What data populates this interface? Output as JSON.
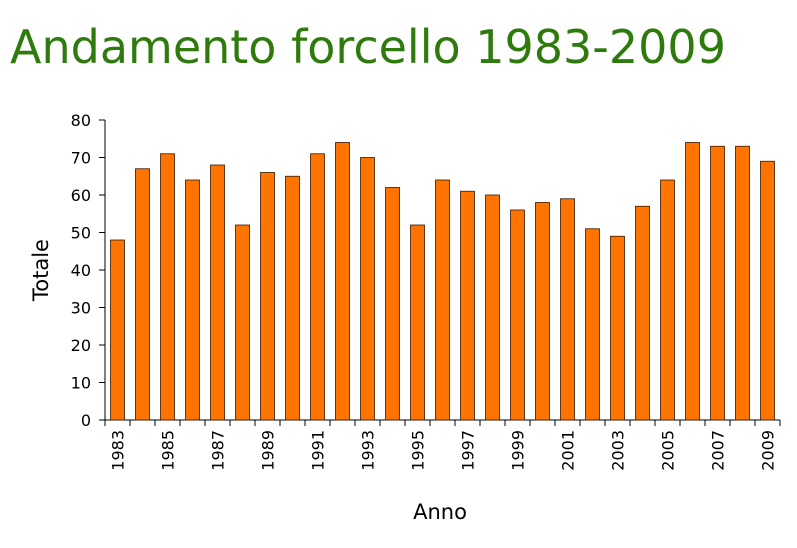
{
  "chart_data": {
    "type": "bar",
    "title": "Andamento forcello 1983-2009",
    "x_label": "Anno",
    "y_label": "Totale",
    "categories": [
      "1983",
      null,
      "1985",
      null,
      "1987",
      null,
      "1989",
      null,
      "1991",
      null,
      "1993",
      null,
      "1995",
      null,
      "1997",
      null,
      "1999",
      null,
      "2001",
      null,
      "2003",
      null,
      "2005",
      null,
      "2007",
      null,
      "2009"
    ],
    "values": [
      48,
      67,
      71,
      64,
      68,
      52,
      66,
      65,
      71,
      74,
      70,
      62,
      52,
      64,
      61,
      60,
      56,
      58,
      59,
      51,
      49,
      57,
      64,
      74,
      73,
      73,
      69
    ],
    "color": "#ff7300",
    "ylim": [
      0,
      80
    ],
    "yticks": [
      0,
      10,
      20,
      30,
      40,
      50,
      60,
      70,
      80
    ],
    "grid": false
  }
}
